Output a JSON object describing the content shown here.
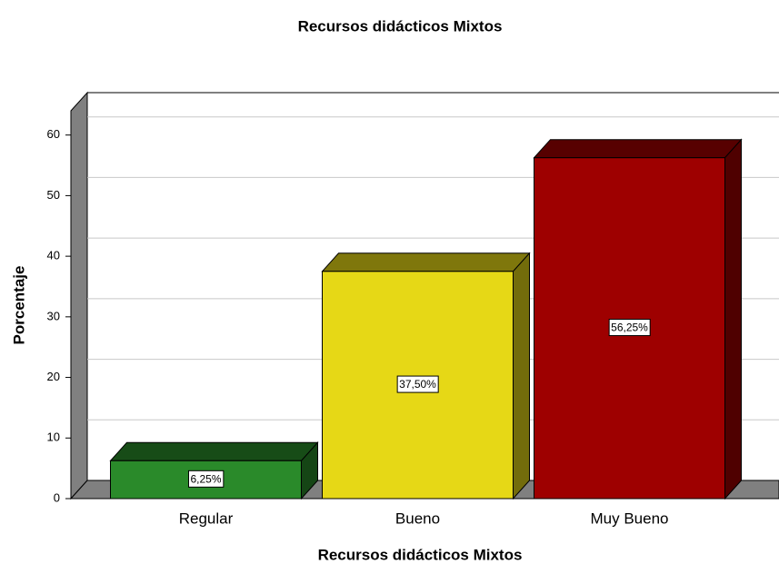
{
  "chart_data": {
    "type": "bar",
    "title": "Recursos didácticos Mixtos",
    "x_label": "Recursos didácticos Mixtos",
    "y_label": "Porcentaje",
    "categories": [
      "Regular",
      "Bueno",
      "Muy Bueno"
    ],
    "values": [
      6.25,
      37.5,
      56.25
    ],
    "value_labels": [
      "6,25%",
      "37,50%",
      "56,25%"
    ],
    "colors": [
      "#2a8a2a",
      "#e6d816",
      "#9e0000"
    ],
    "ylim": [
      0,
      64
    ],
    "yticks": [
      0,
      10,
      20,
      30,
      40,
      50,
      60
    ],
    "grid": true
  }
}
